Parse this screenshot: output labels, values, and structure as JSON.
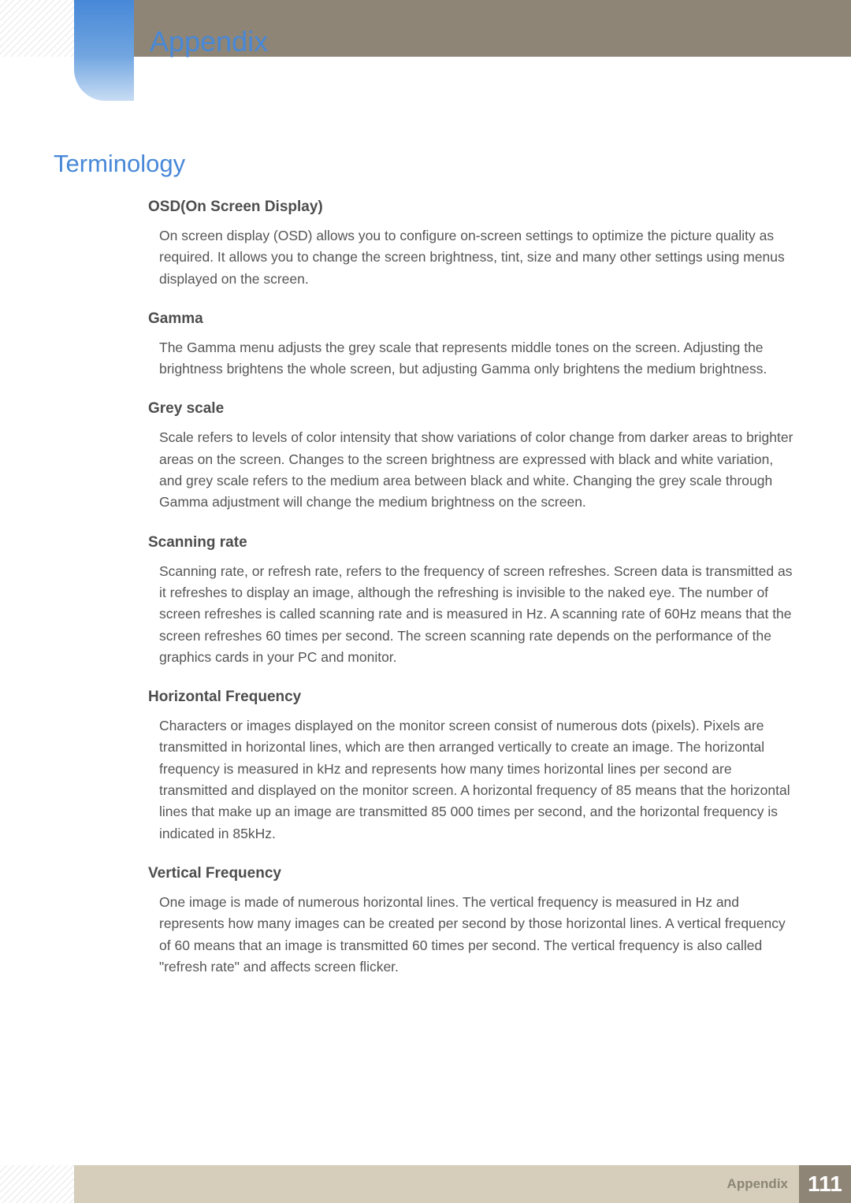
{
  "header": {
    "chapter_title": "Appendix"
  },
  "section": {
    "heading": "Terminology"
  },
  "terms": [
    {
      "title": "OSD(On Screen Display)",
      "body": "On screen display (OSD) allows you to configure on-screen settings to optimize the picture quality as required. It allows you to change the screen brightness, tint, size and many other settings using menus displayed on the screen."
    },
    {
      "title": "Gamma",
      "body": "The Gamma menu adjusts the grey scale that represents middle tones on the screen. Adjusting the brightness brightens the whole screen, but adjusting Gamma only brightens the medium brightness."
    },
    {
      "title": "Grey scale",
      "body": "Scale refers to levels of color intensity that show variations of color change from darker areas to brighter areas on the screen. Changes to the screen brightness are expressed with black and white variation, and grey scale refers to the medium area between black and white. Changing the grey scale through Gamma adjustment will change the medium brightness on the screen."
    },
    {
      "title": "Scanning rate",
      "body": "Scanning rate, or refresh rate, refers to the frequency of screen refreshes. Screen data is transmitted as it refreshes to display an image, although the refreshing is invisible to the naked eye. The number of screen refreshes is called scanning rate and is measured in Hz. A scanning rate of 60Hz means that the screen refreshes 60 times per second. The screen scanning rate depends on the performance of the graphics cards in your PC and monitor."
    },
    {
      "title": "Horizontal Frequency",
      "body": "Characters or images displayed on the monitor screen consist of numerous dots (pixels). Pixels are transmitted in horizontal lines, which are then arranged vertically to create an image. The horizontal frequency is measured in kHz and represents how many times horizontal lines per second are transmitted and displayed on the monitor screen. A horizontal frequency of 85 means that the horizontal lines that make up an image are transmitted 85 000 times per second, and the horizontal frequency is indicated in 85kHz."
    },
    {
      "title": "Vertical Frequency",
      "body": "One image is made of numerous horizontal lines. The vertical frequency is measured in Hz and represents how many images can be created per second by those horizontal lines. A vertical frequency of 60 means that an image is transmitted 60 times per second. The vertical frequency is also called \"refresh rate\" and affects screen flicker."
    }
  ],
  "footer": {
    "label": "Appendix",
    "page_number": "111"
  },
  "colors": {
    "accent_blue": "#4788d8",
    "olive_dark": "#8e8576",
    "olive_light": "#d6cebb",
    "body_text": "#555555",
    "title_text": "#4d4d4d",
    "background": "#ffffff"
  },
  "typography": {
    "chapter_fontsize_pt": 27,
    "section_fontsize_pt": 23,
    "term_title_fontsize_pt": 15,
    "body_fontsize_pt": 13,
    "footer_page_fontsize_pt": 21
  }
}
